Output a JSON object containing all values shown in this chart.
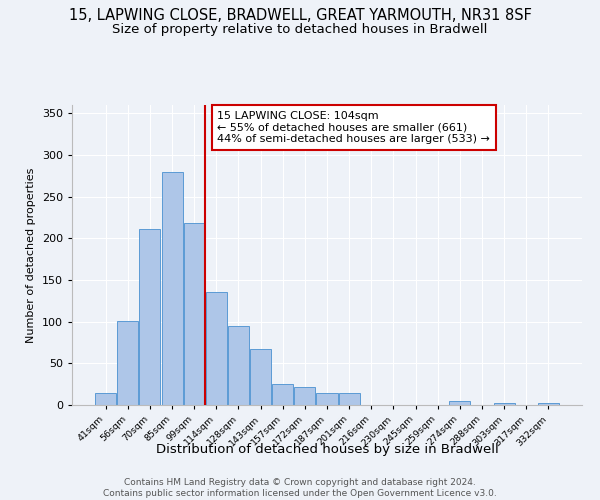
{
  "title": "15, LAPWING CLOSE, BRADWELL, GREAT YARMOUTH, NR31 8SF",
  "subtitle": "Size of property relative to detached houses in Bradwell",
  "xlabel": "Distribution of detached houses by size in Bradwell",
  "ylabel": "Number of detached properties",
  "bar_labels": [
    "41sqm",
    "56sqm",
    "70sqm",
    "85sqm",
    "99sqm",
    "114sqm",
    "128sqm",
    "143sqm",
    "157sqm",
    "172sqm",
    "187sqm",
    "201sqm",
    "216sqm",
    "230sqm",
    "245sqm",
    "259sqm",
    "274sqm",
    "288sqm",
    "303sqm",
    "317sqm",
    "332sqm"
  ],
  "bar_values": [
    15,
    101,
    211,
    280,
    219,
    136,
    95,
    67,
    25,
    22,
    14,
    14,
    0,
    0,
    0,
    0,
    5,
    0,
    3,
    0,
    2
  ],
  "bar_color": "#aec6e8",
  "bar_edge_color": "#5b9bd5",
  "vline_x": 4.5,
  "vline_color": "#cc0000",
  "annotation_lines": [
    "15 LAPWING CLOSE: 104sqm",
    "← 55% of detached houses are smaller (661)",
    "44% of semi-detached houses are larger (533) →"
  ],
  "annotation_box_color": "#ffffff",
  "annotation_box_edge_color": "#cc0000",
  "footer_lines": [
    "Contains HM Land Registry data © Crown copyright and database right 2024.",
    "Contains public sector information licensed under the Open Government Licence v3.0."
  ],
  "ylim": [
    0,
    360
  ],
  "yticks": [
    0,
    50,
    100,
    150,
    200,
    250,
    300,
    350
  ],
  "background_color": "#eef2f8",
  "title_fontsize": 10.5,
  "subtitle_fontsize": 9.5
}
